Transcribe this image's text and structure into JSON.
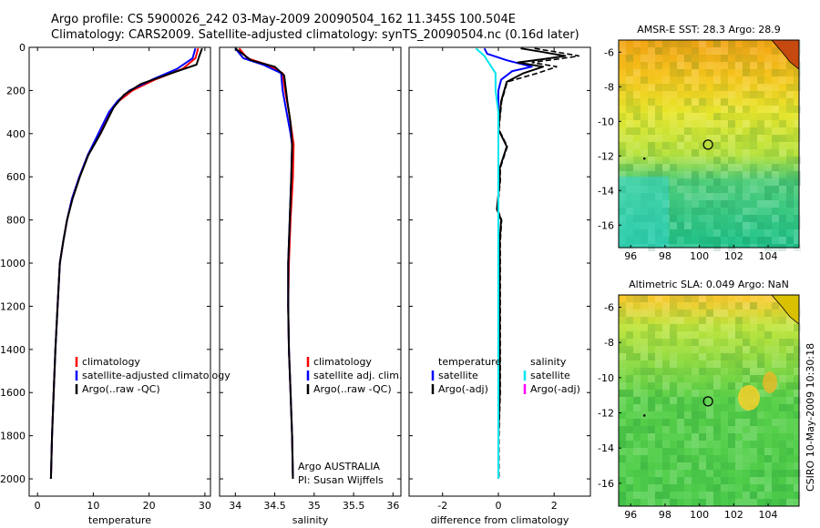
{
  "figure": {
    "title_line1": "Argo profile: CS 5900026_242 03-May-2009 20090504_162 11.345S 100.504E",
    "title_line2": "Climatology: CARS2009. Satellite-adjusted climatology: synTS_20090504.nc (0.16d later)",
    "side_text": "CSIRO 10-May-2009 10:30:18",
    "credit_line1": "Argo AUSTRALIA",
    "credit_line2": "PI: Susan Wijffels"
  },
  "colors": {
    "climatology": "#ff0000",
    "satellite": "#0000ff",
    "argo": "#000000",
    "satellite_salinity": "#00e5ee",
    "argo_salinity_adj": "#ff00ff",
    "station_marker": "#000000"
  },
  "chart_data": [
    {
      "type": "line",
      "xlabel": "temperature",
      "ylabel": "",
      "xlim": [
        -1.5,
        31
      ],
      "ylim": [
        2080,
        0
      ],
      "y_reversed": true,
      "xticks": [
        "0",
        "10",
        "20",
        "30"
      ],
      "yticks": [
        "0",
        "200",
        "400",
        "600",
        "800",
        "1000",
        "1200",
        "1400",
        "1600",
        "1800",
        "2000"
      ],
      "legend": [
        "climatology",
        "satellite-adjusted climatology",
        "Argo(..raw -QC)"
      ],
      "legend_position": "lower-right",
      "series": [
        {
          "name": "climatology",
          "color": "#ff0000",
          "x": [
            28.8,
            28.3,
            26,
            21,
            17,
            14.5,
            13,
            11,
            9,
            7.5,
            6.2,
            5.3,
            4.6,
            4.0,
            3.6,
            3.2,
            2.9,
            2.6,
            2.4
          ],
          "y": [
            5,
            50,
            100,
            150,
            200,
            250,
            300,
            400,
            500,
            600,
            700,
            800,
            900,
            1000,
            1200,
            1400,
            1600,
            1800,
            2000
          ]
        },
        {
          "name": "satellite-adjusted climatology",
          "color": "#0000ff",
          "x": [
            28.3,
            27.8,
            25,
            20.5,
            16.5,
            14.3,
            12.8,
            10.9,
            9,
            7.5,
            6.2,
            5.3,
            4.6,
            4.0,
            3.6,
            3.2,
            2.9,
            2.6,
            2.4
          ],
          "y": [
            5,
            50,
            100,
            150,
            200,
            250,
            300,
            400,
            500,
            600,
            700,
            800,
            900,
            1000,
            1200,
            1400,
            1600,
            1800,
            2000
          ]
        },
        {
          "name": "Argo(..raw -QC)",
          "color": "#000000",
          "x": [
            29.5,
            29,
            28.5,
            24,
            18.5,
            15.5,
            13.6,
            11.3,
            9.1,
            7.6,
            6.3,
            5.3,
            4.6,
            4.0,
            3.6,
            3.2,
            2.9,
            2.6,
            2.4
          ],
          "y": [
            5,
            40,
            80,
            120,
            170,
            220,
            280,
            400,
            500,
            600,
            700,
            800,
            900,
            1000,
            1200,
            1400,
            1600,
            1800,
            2000
          ]
        }
      ]
    },
    {
      "type": "line",
      "xlabel": "salinity",
      "xlim": [
        33.8,
        36.1
      ],
      "ylim": [
        2080,
        0
      ],
      "y_reversed": true,
      "xticks": [
        "34",
        "34.5",
        "35",
        "35.5",
        "36"
      ],
      "legend": [
        "climatology",
        "satellite adj. clim.",
        "Argo(..raw -QC)"
      ],
      "legend_position": "lower-right",
      "series": [
        {
          "name": "climatology",
          "color": "#ff0000",
          "x": [
            34.05,
            34.15,
            34.4,
            34.6,
            34.63,
            34.68,
            34.72,
            34.74,
            34.73,
            34.7,
            34.68,
            34.67,
            34.68,
            34.7,
            34.72,
            34.73
          ],
          "y": [
            5,
            50,
            80,
            120,
            200,
            300,
            400,
            450,
            600,
            800,
            1000,
            1200,
            1400,
            1600,
            1800,
            2000
          ]
        },
        {
          "name": "satellite adj. clim.",
          "color": "#0000ff",
          "x": [
            34.0,
            34.1,
            34.35,
            34.58,
            34.6,
            34.65,
            34.7,
            34.72,
            34.71,
            34.69,
            34.67,
            34.67,
            34.68,
            34.7,
            34.72,
            34.73
          ],
          "y": [
            5,
            50,
            80,
            120,
            200,
            300,
            400,
            450,
            600,
            800,
            1000,
            1200,
            1400,
            1600,
            1800,
            2000
          ]
        },
        {
          "name": "Argo(..raw -QC)",
          "color": "#000000",
          "x": [
            34.0,
            34.2,
            34.5,
            34.62,
            34.66,
            34.7,
            34.72,
            34.71,
            34.69,
            34.67,
            34.67,
            34.68,
            34.7,
            34.72,
            34.73
          ],
          "y": [
            5,
            60,
            90,
            130,
            250,
            350,
            450,
            600,
            800,
            1000,
            1200,
            1400,
            1600,
            1800,
            2000
          ]
        }
      ]
    },
    {
      "type": "line",
      "xlabel": "difference from climatology",
      "xlim": [
        -3.2,
        3.3
      ],
      "ylim": [
        2080,
        0
      ],
      "y_reversed": true,
      "xticks": [
        "-2",
        "0",
        "2"
      ],
      "legend": [
        "temperature",
        "satellite",
        "Argo(-adj)",
        "salinity",
        "satellite",
        "Argo(-adj)"
      ],
      "legend_position": "lower",
      "series": [
        {
          "name": "satellite",
          "color": "#0000ff",
          "x": [
            -0.5,
            -0.4,
            0.3,
            1.2,
            0.5,
            0.1,
            0.0,
            0.0,
            0.0,
            0.0,
            0.0,
            0.0,
            0.0,
            0.0,
            0.0,
            0.0,
            0.0
          ],
          "y": [
            5,
            30,
            60,
            90,
            110,
            150,
            200,
            300,
            400,
            600,
            800,
            1000,
            1200,
            1400,
            1600,
            1800,
            2000
          ]
        },
        {
          "name": "Argo(-adj)",
          "color": "#000000",
          "x": [
            0.8,
            1.5,
            2.4,
            1.6,
            0.7,
            1.6,
            0.9,
            0.3,
            0.1,
            0.0,
            0.15,
            0.3,
            0.2,
            0.05,
            0.05,
            -0.05,
            0.1,
            0.05,
            0.05,
            0.05,
            0.05,
            0.05,
            0.0,
            0.0
          ],
          "y": [
            5,
            20,
            40,
            55,
            70,
            90,
            120,
            160,
            250,
            380,
            420,
            460,
            500,
            560,
            620,
            750,
            800,
            900,
            1000,
            1200,
            1400,
            1600,
            1800,
            2000
          ]
        },
        {
          "name": "satellite",
          "color": "#00e5ee",
          "x": [
            -0.8,
            -0.5,
            -0.3,
            -0.1,
            -0.1,
            0.0,
            0.0,
            0.0,
            0.0,
            0.0,
            0.0,
            0.0,
            0.0,
            0.0
          ],
          "y": [
            5,
            40,
            80,
            120,
            200,
            300,
            400,
            600,
            800,
            1000,
            1200,
            1400,
            1600,
            2000
          ]
        }
      ]
    },
    {
      "type": "heatmap",
      "title": "AMSR-E SST: 28.3 Argo: 28.9",
      "xlim": [
        95.3,
        105.8
      ],
      "ylim": [
        -17.3,
        -5.3
      ],
      "xticks": [
        "96",
        "98",
        "100",
        "102",
        "104"
      ],
      "yticks": [
        "-6",
        "-8",
        "-10",
        "-12",
        "-14",
        "-16"
      ],
      "marker": {
        "lon": 100.504,
        "lat": -11.345
      }
    },
    {
      "type": "heatmap",
      "title": "Altimetric SLA: 0.049 Argo: NaN",
      "xlim": [
        95.3,
        105.8
      ],
      "ylim": [
        -17.3,
        -5.3
      ],
      "xticks": [
        "96",
        "98",
        "100",
        "102",
        "104"
      ],
      "yticks": [
        "-6",
        "-8",
        "-10",
        "-12",
        "-14",
        "-16"
      ],
      "marker": {
        "lon": 100.504,
        "lat": -11.345
      }
    }
  ]
}
